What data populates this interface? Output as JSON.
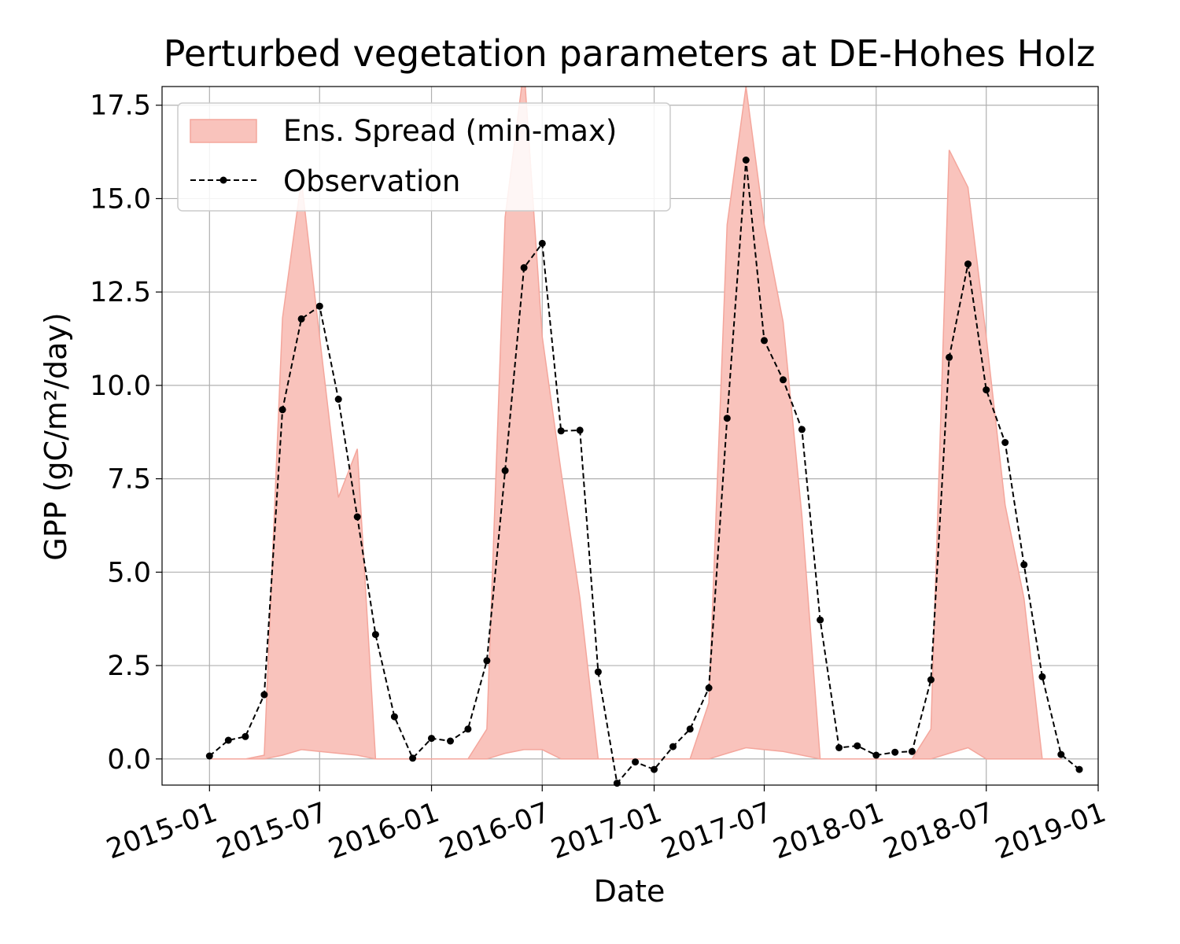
{
  "chart_data": {
    "type": "line",
    "title": "Perturbed vegetation parameters at DE-Hohes Holz",
    "xlabel": "Date",
    "ylabel": "GPP  (gC/m²/day)",
    "x_ticks": [
      "2015-01",
      "2015-07",
      "2016-01",
      "2016-07",
      "2017-01",
      "2017-07",
      "2018-01",
      "2018-07",
      "2019-01"
    ],
    "y_ticks": [
      "0.0",
      "2.5",
      "5.0",
      "7.5",
      "10.0",
      "12.5",
      "15.0",
      "17.5"
    ],
    "ylim": [
      -0.7,
      18.0
    ],
    "xlim": [
      "2014-10-15",
      "2019-01-01"
    ],
    "grid": true,
    "legend_position": "top-left",
    "colors": {
      "spread_fill": "#f9c3bc",
      "spread_edge": "#f4a69c",
      "observation": "#000000"
    },
    "series": [
      {
        "name": "Ens. Spread (min-max)",
        "kind": "band",
        "x": [
          "2015-01",
          "2015-02",
          "2015-03",
          "2015-04",
          "2015-05",
          "2015-06",
          "2015-07",
          "2015-08",
          "2015-09",
          "2015-10",
          "2015-11",
          "2015-12",
          "2016-01",
          "2016-02",
          "2016-03",
          "2016-04",
          "2016-05",
          "2016-06",
          "2016-07",
          "2016-08",
          "2016-09",
          "2016-10",
          "2016-11",
          "2016-12",
          "2017-01",
          "2017-02",
          "2017-03",
          "2017-04",
          "2017-05",
          "2017-06",
          "2017-07",
          "2017-08",
          "2017-09",
          "2017-10",
          "2017-11",
          "2017-12",
          "2018-01",
          "2018-02",
          "2018-03",
          "2018-04",
          "2018-05",
          "2018-06",
          "2018-07",
          "2018-08",
          "2018-09",
          "2018-10",
          "2018-11"
        ],
        "lower": [
          0.0,
          0.0,
          0.0,
          0.0,
          0.1,
          0.25,
          0.2,
          0.15,
          0.1,
          0.0,
          0.0,
          0.0,
          0.0,
          0.0,
          0.0,
          0.0,
          0.15,
          0.25,
          0.25,
          0.0,
          0.0,
          0.0,
          0.0,
          0.0,
          0.0,
          0.0,
          0.0,
          0.0,
          0.15,
          0.3,
          0.25,
          0.2,
          0.1,
          0.0,
          0.0,
          0.0,
          0.0,
          0.0,
          0.0,
          0.0,
          0.15,
          0.3,
          0.0,
          0.0,
          0.0,
          0.0,
          0.0
        ],
        "upper": [
          0.0,
          0.0,
          0.0,
          0.1,
          11.8,
          15.5,
          11.3,
          7.0,
          8.3,
          0.0,
          0.0,
          0.0,
          0.0,
          0.0,
          0.0,
          0.8,
          14.5,
          18.5,
          11.3,
          7.7,
          4.3,
          0.0,
          0.0,
          0.0,
          0.0,
          0.0,
          0.0,
          1.5,
          14.3,
          18.0,
          14.3,
          11.7,
          6.5,
          0.0,
          0.0,
          0.0,
          0.0,
          0.0,
          0.0,
          0.8,
          16.3,
          15.3,
          11.3,
          6.8,
          4.3,
          0.0,
          0.0
        ]
      },
      {
        "name": "Observation",
        "kind": "line",
        "x": [
          "2015-01",
          "2015-02",
          "2015-03",
          "2015-04",
          "2015-05",
          "2015-06",
          "2015-07",
          "2015-08",
          "2015-09",
          "2015-10",
          "2015-11",
          "2015-12",
          "2016-01",
          "2016-02",
          "2016-03",
          "2016-04",
          "2016-05",
          "2016-06",
          "2016-07",
          "2016-08",
          "2016-09",
          "2016-10",
          "2016-11",
          "2016-12",
          "2017-01",
          "2017-02",
          "2017-03",
          "2017-04",
          "2017-05",
          "2017-06",
          "2017-07",
          "2017-08",
          "2017-09",
          "2017-10",
          "2017-11",
          "2017-12",
          "2018-01",
          "2018-02",
          "2018-03",
          "2018-04",
          "2018-05",
          "2018-06",
          "2018-07",
          "2018-08",
          "2018-09",
          "2018-10",
          "2018-11",
          "2018-12"
        ],
        "values": [
          0.08,
          0.5,
          0.6,
          1.72,
          9.35,
          11.78,
          12.12,
          9.63,
          6.48,
          3.33,
          1.13,
          0.02,
          0.55,
          0.48,
          0.8,
          2.63,
          7.72,
          13.15,
          13.8,
          8.78,
          8.8,
          2.33,
          -0.65,
          -0.08,
          -0.28,
          0.33,
          0.8,
          1.9,
          9.12,
          16.03,
          11.2,
          10.15,
          8.82,
          3.72,
          0.3,
          0.35,
          0.1,
          0.18,
          0.2,
          2.12,
          10.75,
          13.25,
          9.88,
          8.47,
          5.2,
          2.2,
          0.12,
          -0.28
        ]
      }
    ]
  }
}
